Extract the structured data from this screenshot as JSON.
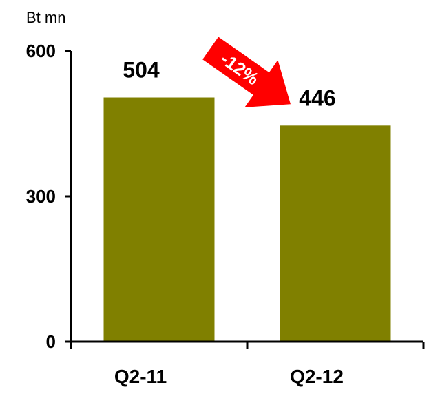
{
  "chart_data": {
    "type": "bar",
    "unit_label": "Bt mn",
    "categories": [
      "Q2-11",
      "Q2-12"
    ],
    "values": [
      504,
      446
    ],
    "data_labels": [
      "504",
      "446"
    ],
    "ylim": [
      0,
      600
    ],
    "yticks": [
      0,
      300,
      600
    ],
    "ytick_labels": [
      "0",
      "300",
      "600"
    ],
    "grid": false,
    "legend": "none",
    "annotation": {
      "text": "-12%",
      "shape": "arrow-down-right",
      "color": "#ff0000"
    },
    "colors": {
      "bar": "#808000",
      "axis": "#000000",
      "arrow": "#ff0000",
      "arrow_text": "#ffffff"
    }
  }
}
